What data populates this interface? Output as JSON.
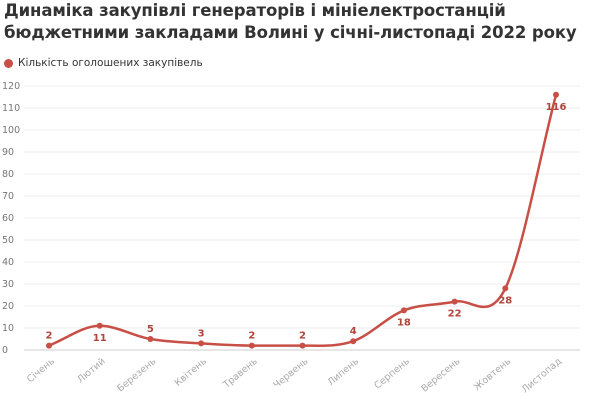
{
  "chart_data": {
    "type": "line",
    "title": "Динаміка закупівлі генераторів і мініелектростанцій бюджетними закладами Волині у січні-листопаді 2022 року",
    "categories": [
      "Січень",
      "Лютий",
      "Березень",
      "Квітень",
      "Травень",
      "Червень",
      "Липень",
      "Серпень",
      "Вересень",
      "Жовтень",
      "Листопад"
    ],
    "series": [
      {
        "name": "Кількість оголошених закупівель",
        "values": [
          2,
          11,
          5,
          3,
          2,
          2,
          4,
          18,
          22,
          28,
          116
        ],
        "color": "#c84f45"
      }
    ],
    "y_ticks": [
      "0",
      "10",
      "20",
      "30",
      "40",
      "50",
      "60",
      "70",
      "80",
      "90",
      "100",
      "110",
      "120"
    ],
    "ylim": [
      0,
      120
    ],
    "grid": true,
    "legend_position": "top-left",
    "data_labels": true
  }
}
